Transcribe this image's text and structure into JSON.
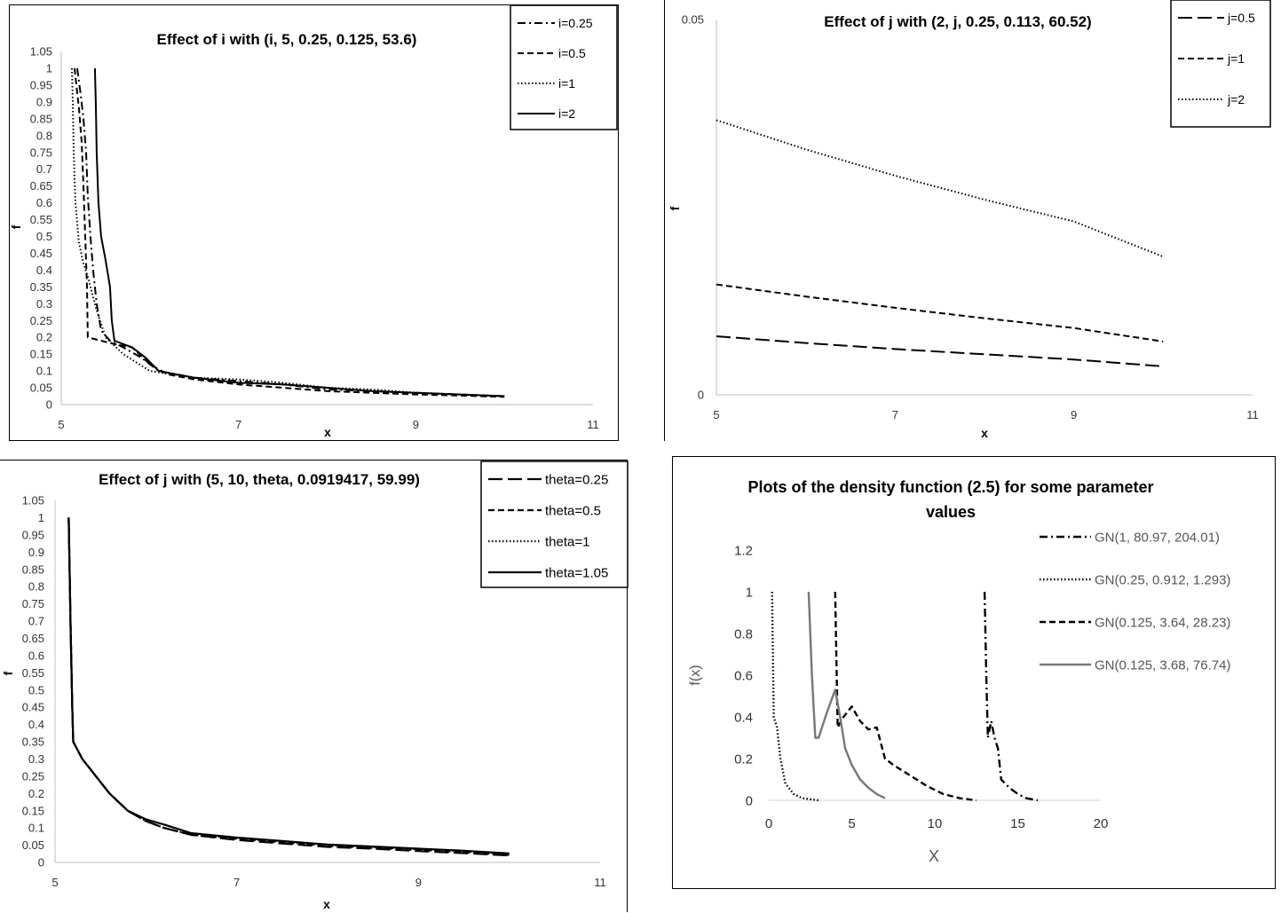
{
  "chart_data": [
    {
      "type": "line",
      "title": "Effect of i with (i, 5, 0.25, 0.125, 53.6)",
      "xlabel": "x",
      "ylabel": "f",
      "xlim": [
        5,
        11
      ],
      "ylim": [
        0,
        1.05
      ],
      "xticks": [
        "5",
        "7",
        "9",
        "11"
      ],
      "yticks": [
        "0",
        "0.05",
        "0.1",
        "0.15",
        "0.2",
        "0.25",
        "0.3",
        "0.35",
        "0.4",
        "0.45",
        "0.5",
        "0.55",
        "0.6",
        "0.65",
        "0.7",
        "0.75",
        "0.8",
        "0.85",
        "0.9",
        "0.95",
        "1",
        "1.05"
      ],
      "legend_position": "top-right",
      "series": [
        {
          "name": "i=0.25",
          "style": "dashdot",
          "points": [
            [
              5.18,
              1.0
            ],
            [
              5.22,
              0.92
            ],
            [
              5.25,
              0.85
            ],
            [
              5.28,
              0.75
            ],
            [
              5.3,
              0.62
            ],
            [
              5.33,
              0.5
            ],
            [
              5.36,
              0.4
            ],
            [
              5.4,
              0.3
            ],
            [
              5.45,
              0.22
            ],
            [
              5.55,
              0.19
            ],
            [
              5.7,
              0.17
            ],
            [
              5.9,
              0.14
            ],
            [
              6.1,
              0.1
            ],
            [
              6.5,
              0.08
            ],
            [
              7.0,
              0.07
            ],
            [
              7.5,
              0.06
            ],
            [
              8.0,
              0.045
            ],
            [
              8.5,
              0.04
            ],
            [
              9.0,
              0.035
            ],
            [
              9.5,
              0.03
            ],
            [
              10.0,
              0.025
            ]
          ]
        },
        {
          "name": "i=0.5",
          "style": "dashed",
          "points": [
            [
              5.15,
              1.0
            ],
            [
              5.17,
              0.95
            ],
            [
              5.2,
              0.88
            ],
            [
              5.23,
              0.78
            ],
            [
              5.25,
              0.65
            ],
            [
              5.27,
              0.5
            ],
            [
              5.29,
              0.35
            ],
            [
              5.3,
              0.2
            ],
            [
              5.45,
              0.19
            ],
            [
              5.6,
              0.18
            ],
            [
              5.8,
              0.17
            ],
            [
              6.0,
              0.12
            ],
            [
              6.2,
              0.09
            ],
            [
              6.5,
              0.075
            ],
            [
              7.0,
              0.06
            ],
            [
              7.5,
              0.05
            ],
            [
              8.0,
              0.04
            ],
            [
              8.5,
              0.035
            ],
            [
              9.0,
              0.03
            ],
            [
              9.5,
              0.027
            ],
            [
              10.0,
              0.023
            ]
          ]
        },
        {
          "name": "i=1",
          "style": "dotted",
          "points": [
            [
              5.12,
              1.0
            ],
            [
              5.13,
              0.9
            ],
            [
              5.14,
              0.75
            ],
            [
              5.16,
              0.6
            ],
            [
              5.2,
              0.48
            ],
            [
              5.25,
              0.42
            ],
            [
              5.3,
              0.38
            ],
            [
              5.4,
              0.28
            ],
            [
              5.5,
              0.2
            ],
            [
              5.7,
              0.15
            ],
            [
              6.0,
              0.1
            ],
            [
              6.5,
              0.08
            ],
            [
              7.0,
              0.075
            ],
            [
              7.5,
              0.065
            ],
            [
              8.0,
              0.05
            ],
            [
              8.5,
              0.045
            ],
            [
              9.0,
              0.035
            ],
            [
              9.5,
              0.03
            ],
            [
              10.0,
              0.025
            ]
          ]
        },
        {
          "name": "i=2",
          "style": "solid",
          "points": [
            [
              5.38,
              1.0
            ],
            [
              5.39,
              0.9
            ],
            [
              5.4,
              0.75
            ],
            [
              5.42,
              0.6
            ],
            [
              5.45,
              0.5
            ],
            [
              5.5,
              0.43
            ],
            [
              5.55,
              0.35
            ],
            [
              5.57,
              0.25
            ],
            [
              5.6,
              0.19
            ],
            [
              5.8,
              0.17
            ],
            [
              5.95,
              0.14
            ],
            [
              6.1,
              0.1
            ],
            [
              6.5,
              0.08
            ],
            [
              7.0,
              0.065
            ],
            [
              7.5,
              0.06
            ],
            [
              8.0,
              0.05
            ],
            [
              8.5,
              0.04
            ],
            [
              9.0,
              0.035
            ],
            [
              9.5,
              0.03
            ],
            [
              10.0,
              0.025
            ]
          ]
        }
      ]
    },
    {
      "type": "line",
      "title": "Effect of j with (2, j, 0.25, 0.113, 60.52)",
      "xlabel": "x",
      "ylabel": "f",
      "xlim": [
        5,
        11
      ],
      "ylim": [
        0,
        0.05
      ],
      "xticks": [
        "5",
        "7",
        "9",
        "11"
      ],
      "yticks": [
        "0",
        "0.05"
      ],
      "legend_position": "top-right",
      "series": [
        {
          "name": "j=0.5",
          "style": "longdash",
          "points": [
            [
              5,
              0.0078
            ],
            [
              6,
              0.0069
            ],
            [
              7,
              0.0061
            ],
            [
              8,
              0.0054
            ],
            [
              9,
              0.0047
            ],
            [
              10,
              0.0038
            ]
          ]
        },
        {
          "name": "j=1",
          "style": "dashed",
          "points": [
            [
              5,
              0.0147
            ],
            [
              6,
              0.0131
            ],
            [
              7,
              0.0116
            ],
            [
              8,
              0.0102
            ],
            [
              9,
              0.0089
            ],
            [
              10,
              0.0071
            ]
          ]
        },
        {
          "name": "j=2",
          "style": "dotted",
          "points": [
            [
              5,
              0.0366
            ],
            [
              6,
              0.0327
            ],
            [
              7,
              0.0292
            ],
            [
              8,
              0.026
            ],
            [
              9,
              0.0231
            ],
            [
              10,
              0.0184
            ]
          ]
        }
      ]
    },
    {
      "type": "line",
      "title": "Effect of j with (5, 10, theta, 0.0919417, 59.99)",
      "xlabel": "x",
      "ylabel": "f",
      "xlim": [
        5,
        11
      ],
      "ylim": [
        0,
        1.05
      ],
      "xticks": [
        "5",
        "7",
        "9",
        "11"
      ],
      "yticks": [
        "0",
        "0.05",
        "0.1",
        "0.15",
        "0.2",
        "0.25",
        "0.3",
        "0.35",
        "0.4",
        "0.45",
        "0.5",
        "0.55",
        "0.6",
        "0.65",
        "0.7",
        "0.75",
        "0.8",
        "0.85",
        "0.9",
        "0.95",
        "1",
        "1.05"
      ],
      "legend_position": "top-right",
      "series": [
        {
          "name": "theta=0.25",
          "style": "longdash",
          "points": [
            [
              5.15,
              1.0
            ],
            [
              5.17,
              0.7
            ],
            [
              5.19,
              0.45
            ],
            [
              5.2,
              0.35
            ],
            [
              5.3,
              0.3
            ],
            [
              5.45,
              0.25
            ],
            [
              5.6,
              0.2
            ],
            [
              5.8,
              0.15
            ],
            [
              6.0,
              0.12
            ],
            [
              6.2,
              0.1
            ],
            [
              6.5,
              0.08
            ],
            [
              7.0,
              0.065
            ],
            [
              7.5,
              0.055
            ],
            [
              8.0,
              0.045
            ],
            [
              8.5,
              0.04
            ],
            [
              9.0,
              0.033
            ],
            [
              9.5,
              0.027
            ],
            [
              10.0,
              0.02
            ]
          ]
        },
        {
          "name": "theta=0.5",
          "style": "dashed",
          "points": [
            [
              5.15,
              1.0
            ],
            [
              5.17,
              0.7
            ],
            [
              5.19,
              0.45
            ],
            [
              5.2,
              0.35
            ],
            [
              5.3,
              0.3
            ],
            [
              5.45,
              0.25
            ],
            [
              5.6,
              0.2
            ],
            [
              5.8,
              0.15
            ],
            [
              6.0,
              0.12
            ],
            [
              6.2,
              0.1
            ],
            [
              6.5,
              0.08
            ],
            [
              7.0,
              0.068
            ],
            [
              7.5,
              0.058
            ],
            [
              8.0,
              0.048
            ],
            [
              8.5,
              0.042
            ],
            [
              9.0,
              0.036
            ],
            [
              9.5,
              0.03
            ],
            [
              10.0,
              0.022
            ]
          ]
        },
        {
          "name": "theta=1",
          "style": "dotted",
          "points": [
            [
              5.15,
              1.0
            ],
            [
              5.17,
              0.7
            ],
            [
              5.19,
              0.45
            ],
            [
              5.2,
              0.35
            ],
            [
              5.3,
              0.3
            ],
            [
              5.45,
              0.25
            ],
            [
              5.6,
              0.2
            ],
            [
              5.8,
              0.15
            ],
            [
              6.0,
              0.12
            ],
            [
              6.2,
              0.1
            ],
            [
              6.5,
              0.08
            ],
            [
              7.0,
              0.07
            ],
            [
              7.5,
              0.06
            ],
            [
              8.0,
              0.05
            ],
            [
              8.5,
              0.044
            ],
            [
              9.0,
              0.038
            ],
            [
              9.5,
              0.032
            ],
            [
              10.0,
              0.024
            ]
          ]
        },
        {
          "name": "theta=1.05",
          "style": "solid",
          "points": [
            [
              5.15,
              1.0
            ],
            [
              5.17,
              0.7
            ],
            [
              5.19,
              0.45
            ],
            [
              5.2,
              0.35
            ],
            [
              5.3,
              0.3
            ],
            [
              5.45,
              0.25
            ],
            [
              5.6,
              0.2
            ],
            [
              5.8,
              0.15
            ],
            [
              6.0,
              0.125
            ],
            [
              6.2,
              0.11
            ],
            [
              6.5,
              0.085
            ],
            [
              7.0,
              0.072
            ],
            [
              7.5,
              0.062
            ],
            [
              8.0,
              0.052
            ],
            [
              8.5,
              0.046
            ],
            [
              9.0,
              0.04
            ],
            [
              9.5,
              0.034
            ],
            [
              10.0,
              0.026
            ]
          ]
        }
      ]
    },
    {
      "type": "line",
      "title": "Plots of the density function (2.5) for some parameter values",
      "title_lines": [
        "Plots of the density function (2.5) for some parameter",
        "values"
      ],
      "xlabel": "X",
      "ylabel": "f(x)",
      "xlim": [
        0,
        20
      ],
      "ylim": [
        0,
        1.2
      ],
      "xticks": [
        "0",
        "5",
        "10",
        "15",
        "20"
      ],
      "yticks": [
        "0",
        "0.2",
        "0.4",
        "0.6",
        "0.8",
        "1",
        "1.2"
      ],
      "legend_position": "right",
      "series": [
        {
          "name": "GN(1, 80.97, 204.01)",
          "style": "dashdot",
          "color": "#000000",
          "points": [
            [
              13.0,
              1.0
            ],
            [
              13.1,
              0.6
            ],
            [
              13.2,
              0.3
            ],
            [
              13.4,
              0.38
            ],
            [
              13.6,
              0.3
            ],
            [
              13.8,
              0.25
            ],
            [
              14.0,
              0.1
            ],
            [
              14.5,
              0.06
            ],
            [
              15.0,
              0.03
            ],
            [
              15.5,
              0.01
            ],
            [
              16.2,
              0.0
            ]
          ]
        },
        {
          "name": "GN(0.25, 0.912, 1.293)",
          "style": "dotted",
          "color": "#000000",
          "points": [
            [
              0.2,
              1.0
            ],
            [
              0.3,
              0.4
            ],
            [
              0.5,
              0.35
            ],
            [
              0.7,
              0.2
            ],
            [
              1.0,
              0.08
            ],
            [
              1.5,
              0.03
            ],
            [
              2.0,
              0.01
            ],
            [
              3.0,
              0.0
            ]
          ]
        },
        {
          "name": "GN(0.125, 3.64, 28.23)",
          "style": "dashed",
          "color": "#000000",
          "points": [
            [
              4.0,
              1.0
            ],
            [
              4.15,
              0.35
            ],
            [
              4.5,
              0.4
            ],
            [
              5.0,
              0.45
            ],
            [
              5.5,
              0.38
            ],
            [
              6.0,
              0.34
            ],
            [
              6.5,
              0.35
            ],
            [
              7.0,
              0.2
            ],
            [
              7.5,
              0.17
            ],
            [
              8.5,
              0.12
            ],
            [
              9.5,
              0.07
            ],
            [
              10.5,
              0.03
            ],
            [
              11.5,
              0.01
            ],
            [
              12.5,
              0.0
            ]
          ]
        },
        {
          "name": "GN(0.125, 3.68, 76.74)",
          "style": "solid",
          "color": "#777777",
          "points": [
            [
              2.4,
              1.0
            ],
            [
              2.6,
              0.6
            ],
            [
              2.8,
              0.3
            ],
            [
              3.0,
              0.3
            ],
            [
              3.5,
              0.42
            ],
            [
              4.0,
              0.53
            ],
            [
              4.3,
              0.4
            ],
            [
              4.6,
              0.25
            ],
            [
              5.0,
              0.17
            ],
            [
              5.5,
              0.1
            ],
            [
              6.0,
              0.06
            ],
            [
              6.5,
              0.03
            ],
            [
              7.0,
              0.01
            ]
          ]
        }
      ]
    }
  ]
}
